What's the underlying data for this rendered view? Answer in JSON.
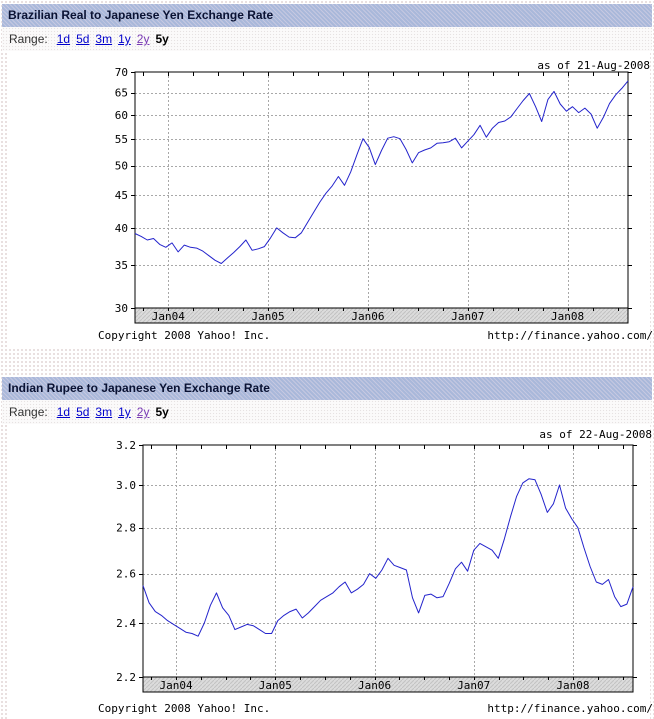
{
  "modules": [
    {
      "title": "Brazilian Real to Japanese Yen Exchange Rate",
      "range": {
        "label": "Range:",
        "items": [
          {
            "label": "1d",
            "state": "link"
          },
          {
            "label": "5d",
            "state": "link"
          },
          {
            "label": "3m",
            "state": "link"
          },
          {
            "label": "1y",
            "state": "link"
          },
          {
            "label": "2y",
            "state": "visited"
          },
          {
            "label": "5y",
            "state": "current"
          }
        ]
      },
      "as_of": "as of 21-Aug-2008",
      "footer": {
        "copyright": "Copyright 2008 Yahoo! Inc.",
        "url": "http://finance.yahoo.com/"
      },
      "chart_data": {
        "type": "line",
        "title": "Brazilian Real to Japanese Yen Exchange Rate",
        "scale": "log",
        "grid": "dashed",
        "line_color": "#2424cc",
        "ylim": [
          30,
          70
        ],
        "yticks": [
          70,
          65,
          60,
          55,
          50,
          45,
          40,
          35,
          30
        ],
        "xticks": [
          {
            "label": "Jan04",
            "index": 5.4
          },
          {
            "label": "Jan05",
            "index": 21.6
          },
          {
            "label": "Jan06",
            "index": 37.8
          },
          {
            "label": "Jan07",
            "index": 54
          },
          {
            "label": "Jan08",
            "index": 70.2
          }
        ],
        "values": [
          39.2,
          38.8,
          38.3,
          38.5,
          37.7,
          37.3,
          37.9,
          36.7,
          37.6,
          37.3,
          37.2,
          36.8,
          36.2,
          35.6,
          35.2,
          35.9,
          36.6,
          37.4,
          38.3,
          36.9,
          37.1,
          37.4,
          38.6,
          40.0,
          39.3,
          38.7,
          38.6,
          39.3,
          40.8,
          42.3,
          43.9,
          45.3,
          46.5,
          48.1,
          46.6,
          48.9,
          52.0,
          55.1,
          53.4,
          50.2,
          52.8,
          55.2,
          55.5,
          55.1,
          53.0,
          50.5,
          52.4,
          52.9,
          53.3,
          54.2,
          54.3,
          54.5,
          55.2,
          53.3,
          54.6,
          55.9,
          57.8,
          55.4,
          57.2,
          58.4,
          58.7,
          59.6,
          61.4,
          63.2,
          64.8,
          61.8,
          58.6,
          63.4,
          65.3,
          62.4,
          60.8,
          61.8,
          60.5,
          61.5,
          60.2,
          57.2,
          59.5,
          62.5,
          64.5,
          66.0,
          67.8
        ]
      }
    },
    {
      "title": "Indian Rupee to Japanese Yen Exchange Rate",
      "range": {
        "label": "Range:",
        "items": [
          {
            "label": "1d",
            "state": "link"
          },
          {
            "label": "5d",
            "state": "link"
          },
          {
            "label": "3m",
            "state": "link"
          },
          {
            "label": "1y",
            "state": "link"
          },
          {
            "label": "2y",
            "state": "visited"
          },
          {
            "label": "5y",
            "state": "current"
          }
        ]
      },
      "as_of": "as of 22-Aug-2008",
      "footer": {
        "copyright": "Copyright 2008 Yahoo! Inc.",
        "url": "http://finance.yahoo.com/"
      },
      "chart_data": {
        "type": "line",
        "title": "Indian Rupee to Japanese Yen Exchange Rate",
        "scale": "log",
        "grid": "dashed",
        "line_color": "#2424cc",
        "ylim": [
          2.2,
          3.2
        ],
        "yticks": [
          3.2,
          3.0,
          2.8,
          2.6,
          2.4,
          2.2
        ],
        "xticks": [
          {
            "label": "Jan04",
            "index": 5.4
          },
          {
            "label": "Jan05",
            "index": 21.6
          },
          {
            "label": "Jan06",
            "index": 37.8
          },
          {
            "label": "Jan07",
            "index": 54
          },
          {
            "label": "Jan08",
            "index": 70.2
          }
        ],
        "values": [
          2.55,
          2.48,
          2.445,
          2.43,
          2.41,
          2.395,
          2.38,
          2.365,
          2.36,
          2.35,
          2.4,
          2.47,
          2.52,
          2.46,
          2.43,
          2.375,
          2.385,
          2.395,
          2.39,
          2.375,
          2.36,
          2.36,
          2.41,
          2.43,
          2.445,
          2.455,
          2.42,
          2.44,
          2.465,
          2.49,
          2.505,
          2.52,
          2.545,
          2.565,
          2.52,
          2.535,
          2.555,
          2.6,
          2.58,
          2.615,
          2.665,
          2.635,
          2.625,
          2.615,
          2.5,
          2.44,
          2.51,
          2.515,
          2.5,
          2.505,
          2.56,
          2.62,
          2.648,
          2.61,
          2.7,
          2.73,
          2.715,
          2.7,
          2.665,
          2.75,
          2.85,
          2.945,
          3.01,
          3.03,
          3.025,
          2.955,
          2.87,
          2.91,
          3.0,
          2.89,
          2.84,
          2.8,
          2.71,
          2.63,
          2.565,
          2.555,
          2.575,
          2.505,
          2.465,
          2.475,
          2.545
        ]
      }
    }
  ]
}
